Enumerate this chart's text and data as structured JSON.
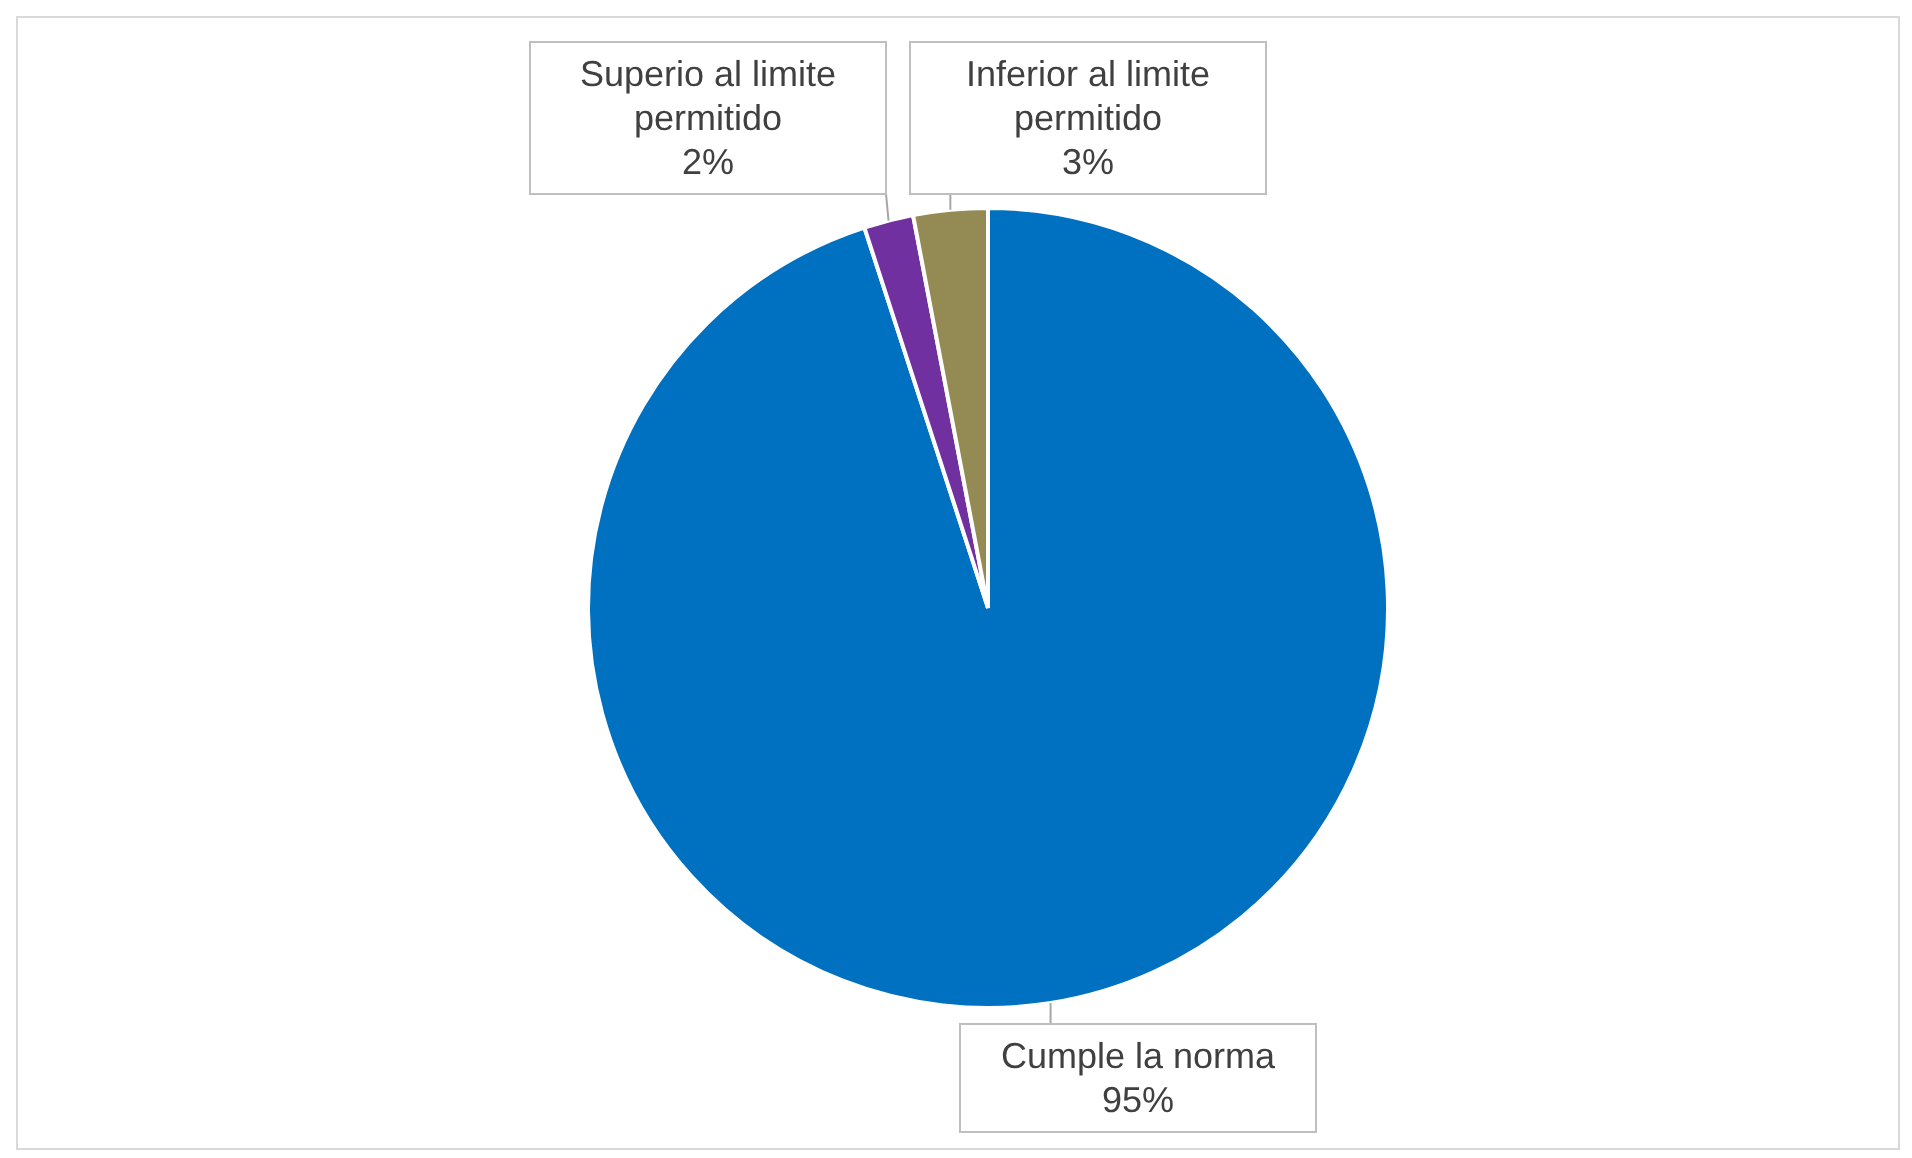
{
  "chart_data": {
    "type": "pie",
    "categories": [
      "Cumple la norma",
      "Superio al limite permitido",
      "Inferior al limite permitido"
    ],
    "values": [
      95,
      2,
      3
    ],
    "colors": [
      "#0070c0",
      "#7030a0",
      "#948a54"
    ],
    "value_labels": [
      "95%",
      "2%",
      "3%"
    ],
    "legend": false
  }
}
